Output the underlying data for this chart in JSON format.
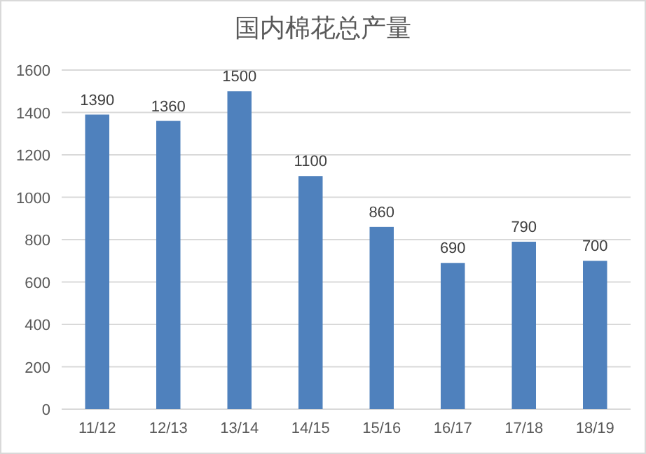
{
  "chart_data": {
    "type": "bar",
    "title": "国内棉花总产量",
    "categories": [
      "11/12",
      "12/13",
      "13/14",
      "14/15",
      "15/16",
      "16/17",
      "17/18",
      "18/19"
    ],
    "values": [
      1390,
      1360,
      1500,
      1100,
      860,
      690,
      790,
      700
    ],
    "color": "#4f81bd",
    "ylim": [
      0,
      1600
    ],
    "yticks": [
      0,
      200,
      400,
      600,
      800,
      1000,
      1200,
      1400,
      1600
    ],
    "grid": "y",
    "data_labels": true
  }
}
